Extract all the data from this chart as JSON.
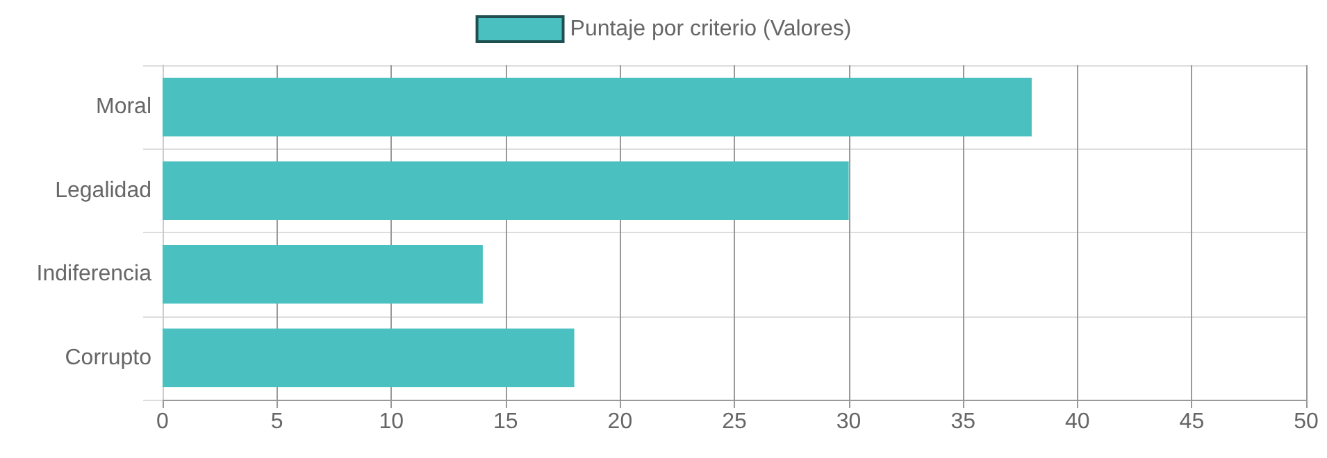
{
  "chart_data": {
    "type": "bar",
    "orientation": "horizontal",
    "categories": [
      "Moral",
      "Legalidad",
      "Indiferencia",
      "Corrupto"
    ],
    "series": [
      {
        "name": "Puntaje por criterio (Valores)",
        "color": "#4bc0c0",
        "values": [
          38,
          30,
          14,
          18
        ]
      }
    ],
    "xlim": [
      0,
      50
    ],
    "xticks": [
      0,
      5,
      10,
      15,
      20,
      25,
      30,
      35,
      40,
      45,
      50
    ],
    "grid": true,
    "legend": "top"
  }
}
